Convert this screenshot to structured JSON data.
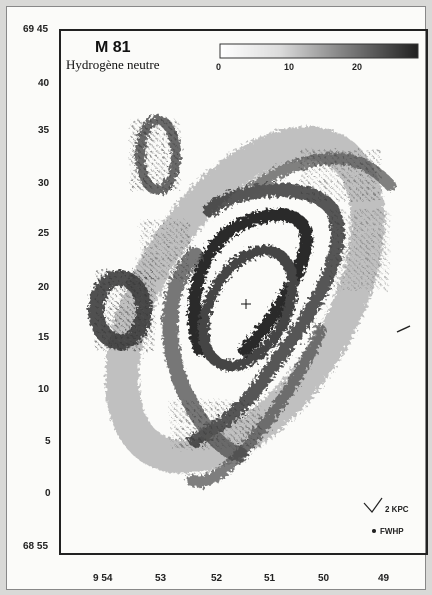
{
  "figure": {
    "title": "M 81",
    "subtitle": "Hydrogène neutre",
    "colorbar_ticks": [
      "0",
      "10",
      "20"
    ],
    "scale_label": "2 KPC",
    "beam_label": "FWHP",
    "y_ticks": [
      "69 45",
      "40",
      "35",
      "30",
      "25",
      "20",
      "15",
      "10",
      "5",
      "0",
      "68 55"
    ],
    "x_ticks": [
      "9 54",
      "53",
      "52",
      "51",
      "50",
      "49"
    ]
  }
}
